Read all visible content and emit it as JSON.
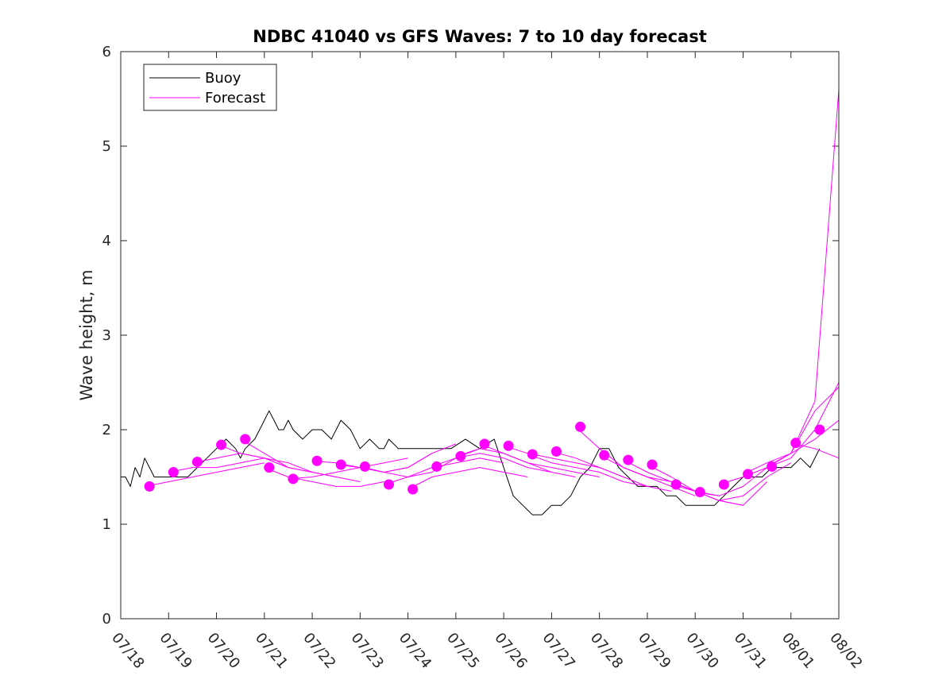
{
  "chart_data": {
    "type": "line",
    "title": "NDBC 41040 vs GFS Waves: 7 to 10 day forecast",
    "ylabel": "Wave height, m",
    "xlabel": "",
    "xlim": [
      "07/18",
      "08/02"
    ],
    "ylim": [
      0,
      6
    ],
    "x_tick_labels": [
      "07/18",
      "07/19",
      "07/20",
      "07/21",
      "07/22",
      "07/23",
      "07/24",
      "07/25",
      "07/26",
      "07/27",
      "07/28",
      "07/29",
      "07/30",
      "07/31",
      "08/01",
      "08/02"
    ],
    "y_ticks": [
      0,
      1,
      2,
      3,
      4,
      5,
      6
    ],
    "legend": {
      "position": "top-left",
      "entries": [
        "Buoy",
        "Forecast"
      ]
    },
    "colors": {
      "buoy": "#000000",
      "forecast": "#ff00ff"
    },
    "series": [
      {
        "name": "Buoy",
        "style": "line",
        "color": "#000000",
        "x": [
          0.0,
          0.1,
          0.2,
          0.3,
          0.4,
          0.5,
          0.6,
          0.7,
          0.8,
          0.9,
          1.0,
          1.2,
          1.4,
          1.6,
          1.8,
          2.0,
          2.2,
          2.4,
          2.5,
          2.6,
          2.8,
          2.9,
          3.0,
          3.1,
          3.2,
          3.3,
          3.4,
          3.5,
          3.6,
          3.8,
          4.0,
          4.2,
          4.4,
          4.6,
          4.8,
          5.0,
          5.2,
          5.4,
          5.5,
          5.6,
          5.8,
          6.0,
          6.3,
          6.6,
          6.9,
          7.2,
          7.5,
          7.8,
          8.0,
          8.2,
          8.4,
          8.6,
          8.8,
          9.0,
          9.2,
          9.4,
          9.6,
          9.8,
          10.0,
          10.2,
          10.4,
          10.6,
          10.8,
          11.0,
          11.2,
          11.4,
          11.6,
          11.8,
          12.0,
          12.2,
          12.4,
          12.6,
          12.8,
          13.0,
          13.2,
          13.4,
          13.6,
          13.8,
          14.0,
          14.2,
          14.4,
          14.6
        ],
        "y": [
          1.5,
          1.5,
          1.4,
          1.6,
          1.5,
          1.7,
          1.6,
          1.5,
          1.5,
          1.5,
          1.5,
          1.5,
          1.5,
          1.6,
          1.7,
          1.8,
          1.9,
          1.8,
          1.7,
          1.8,
          1.9,
          2.0,
          2.1,
          2.2,
          2.1,
          2.0,
          2.0,
          2.1,
          2.0,
          1.9,
          2.0,
          2.0,
          1.9,
          2.1,
          2.0,
          1.8,
          1.9,
          1.8,
          1.8,
          1.9,
          1.8,
          1.8,
          1.8,
          1.8,
          1.8,
          1.9,
          1.8,
          1.9,
          1.6,
          1.3,
          1.2,
          1.1,
          1.1,
          1.2,
          1.2,
          1.3,
          1.5,
          1.6,
          1.8,
          1.8,
          1.6,
          1.5,
          1.4,
          1.4,
          1.4,
          1.3,
          1.3,
          1.2,
          1.2,
          1.2,
          1.2,
          1.3,
          1.4,
          1.5,
          1.5,
          1.5,
          1.6,
          1.6,
          1.6,
          1.7,
          1.6,
          1.8
        ]
      },
      {
        "name": "Forecast",
        "style": "line",
        "color": "#ff00ff",
        "x": [
          0.5,
          1.0,
          1.5,
          2.0,
          2.5,
          3.0
        ],
        "y": [
          1.4,
          1.45,
          1.5,
          1.55,
          1.6,
          1.65
        ]
      },
      {
        "style": "line",
        "color": "#ff00ff",
        "x": [
          1.0,
          1.5,
          2.0,
          2.5,
          3.0,
          3.5
        ],
        "y": [
          1.55,
          1.6,
          1.6,
          1.65,
          1.7,
          1.6
        ]
      },
      {
        "style": "line",
        "color": "#ff00ff",
        "x": [
          1.5,
          2.0,
          2.5,
          3.0,
          3.5,
          4.0
        ],
        "y": [
          1.65,
          1.7,
          1.75,
          1.7,
          1.6,
          1.55
        ]
      },
      {
        "style": "line",
        "color": "#ff00ff",
        "x": [
          2.0,
          2.5,
          3.0,
          3.5,
          4.0,
          4.5
        ],
        "y": [
          1.85,
          1.75,
          1.7,
          1.65,
          1.55,
          1.5
        ]
      },
      {
        "style": "line",
        "color": "#ff00ff",
        "x": [
          2.5,
          3.0,
          3.5,
          4.0,
          4.5,
          5.0
        ],
        "y": [
          1.9,
          1.75,
          1.6,
          1.55,
          1.5,
          1.45
        ]
      },
      {
        "style": "line",
        "color": "#ff00ff",
        "x": [
          3.0,
          3.5,
          4.0,
          4.5,
          5.0,
          5.5
        ],
        "y": [
          1.6,
          1.5,
          1.45,
          1.4,
          1.4,
          1.45
        ]
      },
      {
        "style": "line",
        "color": "#ff00ff",
        "x": [
          3.5,
          4.0,
          4.5,
          5.0,
          5.5,
          6.0
        ],
        "y": [
          1.48,
          1.5,
          1.55,
          1.6,
          1.65,
          1.7
        ]
      },
      {
        "style": "line",
        "color": "#ff00ff",
        "x": [
          4.0,
          4.5,
          5.0,
          5.5,
          6.0,
          6.5
        ],
        "y": [
          1.67,
          1.65,
          1.6,
          1.55,
          1.6,
          1.75
        ]
      },
      {
        "style": "line",
        "color": "#ff00ff",
        "x": [
          4.5,
          5.0,
          5.5,
          6.0,
          6.5,
          7.0
        ],
        "y": [
          1.63,
          1.6,
          1.55,
          1.6,
          1.75,
          1.85
        ]
      },
      {
        "style": "line",
        "color": "#ff00ff",
        "x": [
          5.0,
          5.5,
          6.0,
          6.5,
          7.0,
          7.5
        ],
        "y": [
          1.61,
          1.55,
          1.5,
          1.55,
          1.7,
          1.8
        ]
      },
      {
        "style": "line",
        "color": "#ff00ff",
        "x": [
          5.5,
          6.0,
          6.5,
          7.0,
          7.5,
          8.0
        ],
        "y": [
          1.42,
          1.5,
          1.6,
          1.65,
          1.7,
          1.65
        ]
      },
      {
        "style": "line",
        "color": "#ff00ff",
        "x": [
          6.0,
          6.5,
          7.0,
          7.5,
          8.0,
          8.5
        ],
        "y": [
          1.37,
          1.5,
          1.55,
          1.6,
          1.55,
          1.5
        ]
      },
      {
        "style": "line",
        "color": "#ff00ff",
        "x": [
          6.5,
          7.0,
          7.5,
          8.0,
          8.5,
          9.0
        ],
        "y": [
          1.61,
          1.7,
          1.75,
          1.7,
          1.6,
          1.55
        ]
      },
      {
        "style": "line",
        "color": "#ff00ff",
        "x": [
          7.0,
          7.5,
          8.0,
          8.5,
          9.0,
          9.5
        ],
        "y": [
          1.72,
          1.8,
          1.75,
          1.65,
          1.55,
          1.5
        ]
      },
      {
        "style": "line",
        "color": "#ff00ff",
        "x": [
          7.5,
          8.0,
          8.5,
          9.0,
          9.5,
          10.0
        ],
        "y": [
          1.85,
          1.75,
          1.65,
          1.6,
          1.55,
          1.5
        ]
      },
      {
        "style": "line",
        "color": "#ff00ff",
        "x": [
          8.0,
          8.5,
          9.0,
          9.5,
          10.0,
          10.5
        ],
        "y": [
          1.83,
          1.75,
          1.7,
          1.65,
          1.6,
          1.5
        ]
      },
      {
        "style": "line",
        "color": "#ff00ff",
        "x": [
          8.5,
          9.0,
          9.5,
          10.0,
          10.5,
          11.0
        ],
        "y": [
          1.74,
          1.65,
          1.6,
          1.55,
          1.45,
          1.4
        ]
      },
      {
        "style": "line",
        "color": "#ff00ff",
        "x": [
          9.0,
          9.5,
          10.0,
          10.5,
          11.0,
          11.5
        ],
        "y": [
          1.77,
          1.7,
          1.6,
          1.5,
          1.4,
          1.35
        ]
      },
      {
        "style": "line",
        "color": "#ff00ff",
        "x": [
          9.5,
          10.0,
          10.5,
          11.0,
          11.5,
          12.0
        ],
        "y": [
          2.03,
          1.8,
          1.6,
          1.5,
          1.4,
          1.3
        ]
      },
      {
        "style": "line",
        "color": "#ff00ff",
        "x": [
          10.0,
          10.5,
          11.0,
          11.5,
          12.0,
          12.5
        ],
        "y": [
          1.73,
          1.6,
          1.5,
          1.45,
          1.35,
          1.3
        ]
      },
      {
        "style": "line",
        "color": "#ff00ff",
        "x": [
          10.5,
          11.0,
          11.5,
          12.0,
          12.5,
          13.0
        ],
        "y": [
          1.68,
          1.55,
          1.45,
          1.35,
          1.25,
          1.2
        ]
      },
      {
        "style": "line",
        "color": "#ff00ff",
        "x": [
          11.0,
          11.5,
          12.0,
          12.5,
          13.0,
          13.5
        ],
        "y": [
          1.63,
          1.5,
          1.35,
          1.25,
          1.2,
          1.45
        ]
      },
      {
        "style": "line",
        "color": "#ff00ff",
        "x": [
          11.5,
          12.0,
          12.5,
          13.0,
          13.5,
          14.0
        ],
        "y": [
          1.42,
          1.35,
          1.25,
          1.3,
          1.5,
          1.65
        ]
      },
      {
        "style": "line",
        "color": "#ff00ff",
        "x": [
          12.0,
          12.5,
          13.0,
          13.5,
          14.0,
          14.5,
          15.0
        ],
        "y": [
          1.34,
          1.3,
          1.4,
          1.6,
          1.75,
          2.3,
          5.6
        ]
      },
      {
        "style": "line",
        "color": "#ff00ff",
        "x": [
          12.5,
          13.0,
          13.5,
          14.0,
          14.5,
          15.0
        ],
        "y": [
          1.42,
          1.5,
          1.6,
          1.7,
          2.0,
          2.5
        ]
      },
      {
        "style": "line",
        "color": "#ff00ff",
        "x": [
          13.0,
          13.5,
          14.0,
          14.5,
          15.0
        ],
        "y": [
          1.53,
          1.65,
          1.75,
          2.2,
          2.45
        ]
      },
      {
        "style": "line",
        "color": "#ff00ff",
        "x": [
          13.5,
          14.0,
          14.5,
          15.0
        ],
        "y": [
          1.61,
          1.75,
          1.9,
          2.1
        ]
      },
      {
        "style": "line",
        "color": "#ff00ff",
        "x": [
          14.0,
          14.5,
          15.0
        ],
        "y": [
          1.86,
          1.8,
          1.7
        ]
      },
      {
        "style": "markers",
        "color": "#ff00ff",
        "x": [
          0.6,
          1.1,
          1.6,
          2.1,
          2.6,
          3.1,
          3.6,
          4.1,
          4.6,
          5.1,
          5.6,
          6.1,
          6.6,
          7.1,
          7.6,
          8.1,
          8.6,
          9.1,
          9.6,
          10.1,
          10.6,
          11.1,
          11.6,
          12.1,
          12.6,
          13.1,
          13.6,
          14.1,
          14.6
        ],
        "y": [
          1.4,
          1.55,
          1.66,
          1.84,
          1.9,
          1.6,
          1.48,
          1.67,
          1.63,
          1.61,
          1.42,
          1.37,
          1.61,
          1.72,
          1.85,
          1.83,
          1.74,
          1.77,
          2.03,
          1.73,
          1.68,
          1.63,
          1.42,
          1.34,
          1.42,
          1.53,
          1.61,
          1.86,
          2.0
        ]
      }
    ]
  }
}
